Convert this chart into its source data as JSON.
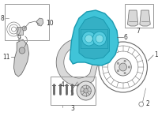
{
  "bg_color": "#ffffff",
  "caliper_color": "#40c4d8",
  "caliper_outline": "#1a9ab0",
  "line_color": "#666666",
  "box_edge": "#999999",
  "figsize": [
    2.0,
    1.47
  ],
  "dpi": 100
}
